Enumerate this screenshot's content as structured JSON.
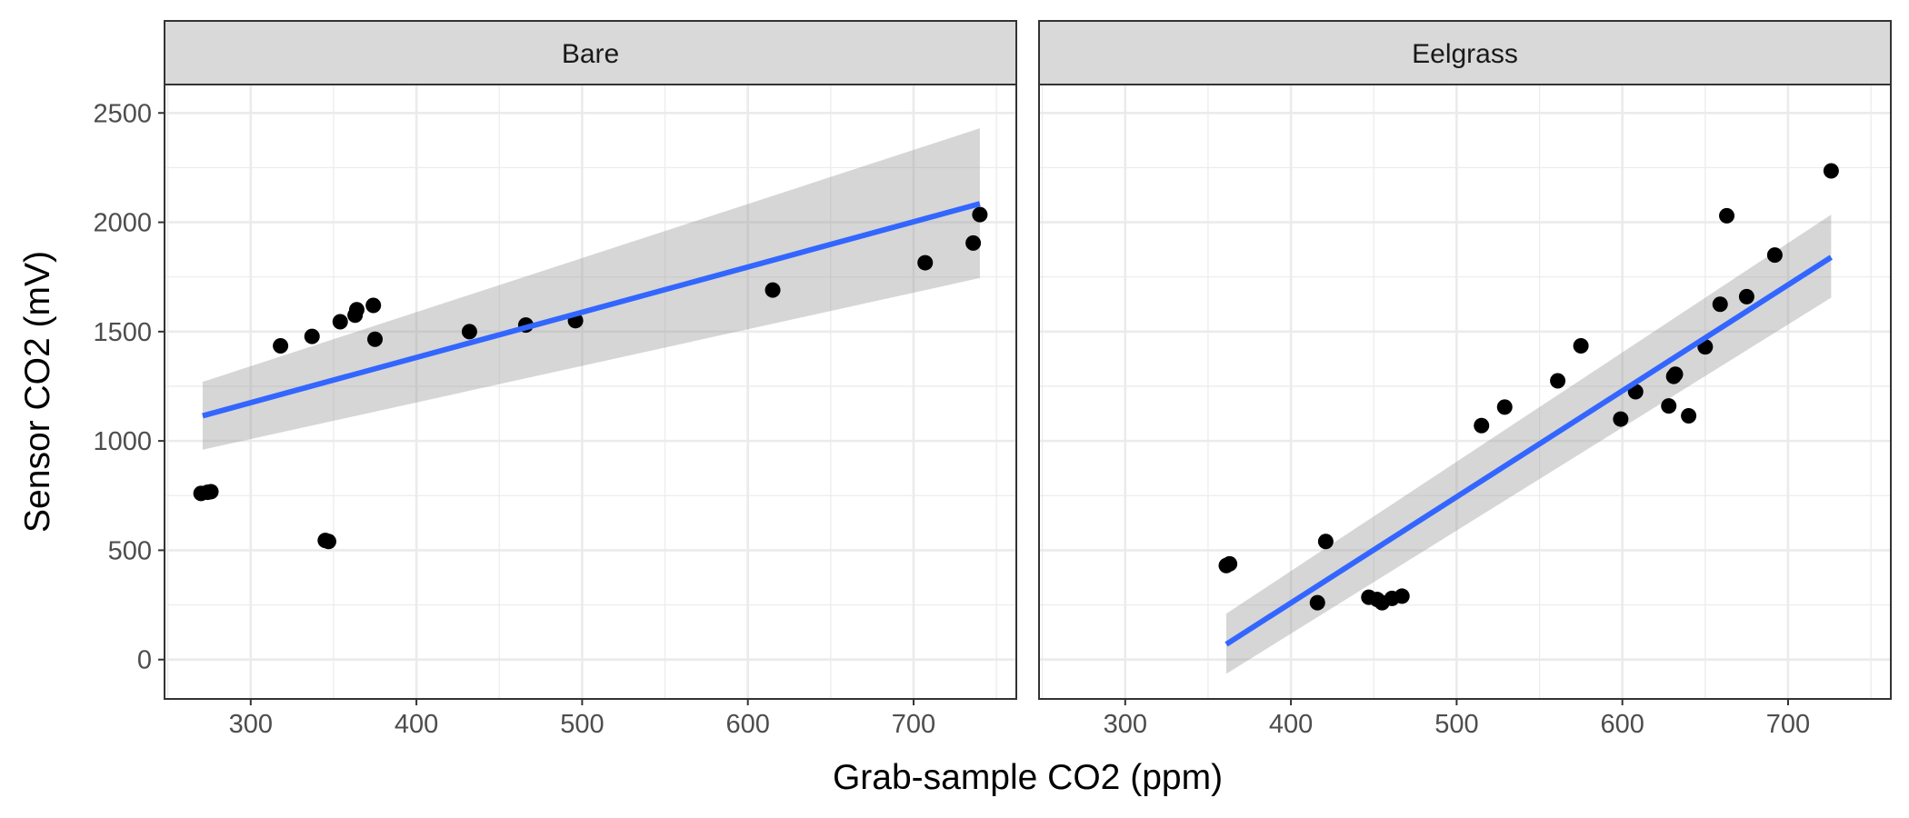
{
  "chart_data": {
    "type": "scatter",
    "xlabel": "Grab-sample CO2 (ppm)",
    "ylabel": "Sensor CO2 (mV)",
    "xlim": [
      248,
      762
    ],
    "ylim": [
      -180,
      2630
    ],
    "x_ticks": [
      300,
      400,
      500,
      600,
      700
    ],
    "y_ticks": [
      0,
      500,
      1000,
      1500,
      2000,
      2500
    ],
    "grid": true,
    "colors": {
      "points": "#000000",
      "fit_line": "#3366ff",
      "ribbon": "#999999",
      "strip_bg": "#d9d9d9",
      "grid": "#ebebeb"
    },
    "panels": [
      {
        "name": "Bare",
        "points": [
          {
            "x": 270,
            "y": 760
          },
          {
            "x": 274,
            "y": 765
          },
          {
            "x": 276,
            "y": 768
          },
          {
            "x": 318,
            "y": 1435
          },
          {
            "x": 337,
            "y": 1478
          },
          {
            "x": 345,
            "y": 545
          },
          {
            "x": 347,
            "y": 540
          },
          {
            "x": 354,
            "y": 1545
          },
          {
            "x": 363,
            "y": 1575
          },
          {
            "x": 364,
            "y": 1600
          },
          {
            "x": 374,
            "y": 1620
          },
          {
            "x": 375,
            "y": 1465
          },
          {
            "x": 432,
            "y": 1500
          },
          {
            "x": 466,
            "y": 1530
          },
          {
            "x": 496,
            "y": 1550
          },
          {
            "x": 615,
            "y": 1690
          },
          {
            "x": 707,
            "y": 1815
          },
          {
            "x": 736,
            "y": 1905
          },
          {
            "x": 740,
            "y": 2035
          }
        ],
        "fit": {
          "x": [
            271,
            740
          ],
          "y": [
            1115,
            2085
          ]
        },
        "ribbon": {
          "x": [
            271,
            740
          ],
          "lower": [
            960,
            1745
          ],
          "upper": [
            1270,
            2430
          ]
        }
      },
      {
        "name": "Eelgrass",
        "points": [
          {
            "x": 361,
            "y": 430
          },
          {
            "x": 363,
            "y": 438
          },
          {
            "x": 416,
            "y": 260
          },
          {
            "x": 421,
            "y": 540
          },
          {
            "x": 447,
            "y": 285
          },
          {
            "x": 452,
            "y": 275
          },
          {
            "x": 455,
            "y": 260
          },
          {
            "x": 461,
            "y": 280
          },
          {
            "x": 467,
            "y": 290
          },
          {
            "x": 515,
            "y": 1070
          },
          {
            "x": 529,
            "y": 1155
          },
          {
            "x": 561,
            "y": 1275
          },
          {
            "x": 575,
            "y": 1435
          },
          {
            "x": 599,
            "y": 1100
          },
          {
            "x": 608,
            "y": 1225
          },
          {
            "x": 628,
            "y": 1160
          },
          {
            "x": 631,
            "y": 1295
          },
          {
            "x": 632,
            "y": 1305
          },
          {
            "x": 640,
            "y": 1115
          },
          {
            "x": 650,
            "y": 1430
          },
          {
            "x": 659,
            "y": 1625
          },
          {
            "x": 663,
            "y": 2030
          },
          {
            "x": 675,
            "y": 1660
          },
          {
            "x": 692,
            "y": 1850
          },
          {
            "x": 726,
            "y": 2235
          }
        ],
        "fit": {
          "x": [
            361,
            726
          ],
          "y": [
            70,
            1840
          ]
        },
        "ribbon": {
          "x": [
            361,
            726
          ],
          "lower": [
            -65,
            1655
          ],
          "upper": [
            210,
            2035
          ]
        }
      }
    ]
  }
}
